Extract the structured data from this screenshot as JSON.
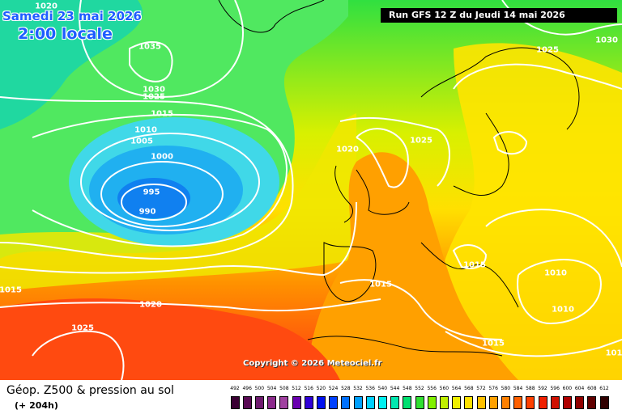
{
  "map": {
    "date_text": "Samedi 23 mai 2026",
    "time_text": "2:00 locale",
    "run_text": "Run GFS 12 Z du Jeudi 14 mai 2026",
    "copyright": "Copyright © 2026 Meteociel.fr",
    "isobar_labels": [
      "1020",
      "1035",
      "1030",
      "1025",
      "1015",
      "1010",
      "1005",
      "1000",
      "995",
      "990",
      "1020",
      "1025",
      "1030",
      "1025",
      "1015",
      "1010",
      "1010",
      "1015",
      "1020",
      "1025",
      "1015",
      "1015",
      "101"
    ]
  },
  "footer": {
    "title": "Géop. Z500 & pression au sol",
    "subtitle": "(+ 204h)"
  },
  "legend": {
    "labels": [
      "492",
      "496",
      "500",
      "504",
      "508",
      "512",
      "516",
      "520",
      "524",
      "528",
      "532",
      "536",
      "540",
      "544",
      "548",
      "552",
      "556",
      "560",
      "564",
      "568",
      "572",
      "576",
      "580",
      "584",
      "588",
      "592",
      "596",
      "600",
      "604",
      "608",
      "612"
    ],
    "colors": [
      "#3a0033",
      "#5a0a55",
      "#6e1a6e",
      "#8b2a8b",
      "#a040a0",
      "#6a00b0",
      "#3000d8",
      "#0010f0",
      "#0040ff",
      "#0070ff",
      "#00a0ff",
      "#00d0ff",
      "#00f0f0",
      "#00e8b0",
      "#00e070",
      "#30e030",
      "#80f000",
      "#c0f000",
      "#f0f000",
      "#ffe000",
      "#ffc000",
      "#ffa000",
      "#ff8000",
      "#ff6000",
      "#ff4000",
      "#f02000",
      "#d01000",
      "#b00000",
      "#900000",
      "#600000",
      "#300000"
    ]
  }
}
